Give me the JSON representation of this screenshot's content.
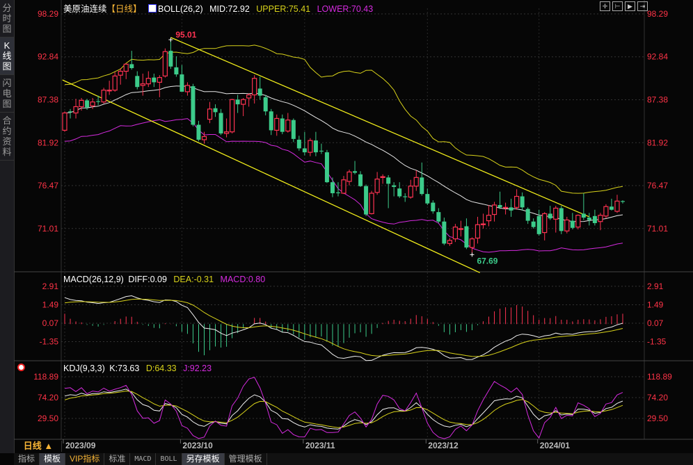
{
  "sidebar": {
    "tabs": [
      {
        "label": "分时图",
        "active": false
      },
      {
        "label": "K线图",
        "active": true
      },
      {
        "label": "闪电图",
        "active": false
      },
      {
        "label": "合约资料",
        "active": false
      }
    ]
  },
  "header": {
    "instrument": "美原油连续",
    "period_tag": "【日线】",
    "boll_label": "BOLL(26,2)",
    "mid": "MID:72.92",
    "upper": "UPPER:75.41",
    "lower": "LOWER:70.43"
  },
  "toolbar": {
    "icons": [
      "crosshair-icon",
      "zoom-in-icon",
      "zoom-out-icon",
      "move-right-icon"
    ]
  },
  "macd_header": {
    "label": "MACD(26,12,9)",
    "diff": "DIFF:0.09",
    "dea": "DEA:-0.31",
    "macd": "MACD:0.80"
  },
  "kdj_header": {
    "label": "KDJ(9,3,3)",
    "k": "K:73.63",
    "d": "D:64.33",
    "j": "J:92.23"
  },
  "bottom": {
    "period": "日线 ▲",
    "tabs": [
      {
        "label": "指标",
        "style": "normal"
      },
      {
        "label": "模板",
        "style": "active"
      },
      {
        "label": "VIP指标",
        "style": "vip"
      },
      {
        "label": "标准",
        "style": "normal"
      },
      {
        "label": "MACD",
        "style": "mono"
      },
      {
        "label": "BOLL",
        "style": "mono"
      },
      {
        "label": "另存模板",
        "style": "active"
      },
      {
        "label": "管理模板",
        "style": "normal"
      }
    ]
  },
  "colors": {
    "up": "#ff3352",
    "down": "#3ccb8a",
    "axis_text": "#ff3347",
    "mid": "#e8e8e8",
    "upper": "#d8d21a",
    "lower": "#d62be0",
    "trend": "#f2ee1a",
    "dea": "#d8d21a",
    "j": "#d62be0"
  },
  "chart_data": [
    {
      "type": "candlestick",
      "title": "美原油连续【日线】",
      "y_ticks": [
        "98.29",
        "92.84",
        "87.38",
        "81.92",
        "76.47",
        "71.01"
      ],
      "ylim": [
        65.0,
        99.0
      ],
      "grid": true,
      "x_labels": [
        {
          "index": 0,
          "label": "2023/09"
        },
        {
          "index": 21,
          "label": "2023/10"
        },
        {
          "index": 43,
          "label": "2023/11"
        },
        {
          "index": 65,
          "label": "2023/12"
        },
        {
          "index": 85,
          "label": "2024/01"
        }
      ],
      "annotations": [
        {
          "index": 19,
          "value": 95.01,
          "label": "95.01",
          "kind": "high"
        },
        {
          "index": 73,
          "value": 67.69,
          "label": "67.69",
          "kind": "low"
        }
      ],
      "trendlines": [
        {
          "from": [
            19,
            95.3
          ],
          "to": [
            94,
            72.5
          ]
        },
        {
          "from": [
            -0.4,
            89.9
          ],
          "to": [
            74.4,
            65.4
          ]
        }
      ],
      "indicator": "BOLL(26,2)",
      "ohlc": [
        [
          83.5,
          85.9,
          83.3,
          85.7
        ],
        [
          85.9,
          86.2,
          85.0,
          85.8
        ],
        [
          85.7,
          87.5,
          85.0,
          86.5
        ],
        [
          86.5,
          87.6,
          86.0,
          87.3
        ],
        [
          87.3,
          87.5,
          86.1,
          86.4
        ],
        [
          86.6,
          87.6,
          86.2,
          87.1
        ],
        [
          87.2,
          87.9,
          86.7,
          87.1
        ],
        [
          87.1,
          88.9,
          86.9,
          88.6
        ],
        [
          88.5,
          89.8,
          88.0,
          88.6
        ],
        [
          88.6,
          90.9,
          88.4,
          90.4
        ],
        [
          90.5,
          91.4,
          89.3,
          91.0
        ],
        [
          91.0,
          92.0,
          90.0,
          91.9
        ],
        [
          91.9,
          93.6,
          91.2,
          91.4
        ],
        [
          90.4,
          91.0,
          88.7,
          89.0
        ],
        [
          89.2,
          90.7,
          87.9,
          89.4
        ],
        [
          89.4,
          91.0,
          89.0,
          90.1
        ],
        [
          90.2,
          90.7,
          89.0,
          89.6
        ],
        [
          89.6,
          90.5,
          87.7,
          90.2
        ],
        [
          90.4,
          93.9,
          90.2,
          93.5
        ],
        [
          93.6,
          95.01,
          91.3,
          91.6
        ],
        [
          91.5,
          92.9,
          90.3,
          90.6
        ],
        [
          90.6,
          91.8,
          88.4,
          88.4
        ],
        [
          88.4,
          89.6,
          87.9,
          89.2
        ],
        [
          89.1,
          89.4,
          84.0,
          84.2
        ],
        [
          84.2,
          84.7,
          82.1,
          82.3
        ],
        [
          82.3,
          83.3,
          81.8,
          82.7
        ],
        [
          84.9,
          87.1,
          84.4,
          86.2
        ],
        [
          86.3,
          86.8,
          85.2,
          85.8
        ],
        [
          85.7,
          86.2,
          82.9,
          83.1
        ],
        [
          83.1,
          85.0,
          82.6,
          83.3
        ],
        [
          83.3,
          87.5,
          83.1,
          87.4
        ],
        [
          87.4,
          88.0,
          85.7,
          86.8
        ],
        [
          86.8,
          87.6,
          85.3,
          87.4
        ],
        [
          87.6,
          88.2,
          86.5,
          88.0
        ],
        [
          88.0,
          90.5,
          86.9,
          90.1
        ],
        [
          88.8,
          90.3,
          87.4,
          87.9
        ],
        [
          87.7,
          88.0,
          85.4,
          85.9
        ],
        [
          85.9,
          86.2,
          82.9,
          83.5
        ],
        [
          83.5,
          85.5,
          82.8,
          85.0
        ],
        [
          85.0,
          85.5,
          83.0,
          83.3
        ],
        [
          83.4,
          85.7,
          83.2,
          84.8
        ],
        [
          84.8,
          85.0,
          82.0,
          82.4
        ],
        [
          82.3,
          82.8,
          80.9,
          81.2
        ],
        [
          81.2,
          83.3,
          80.3,
          80.7
        ],
        [
          80.7,
          82.5,
          80.2,
          82.2
        ],
        [
          82.2,
          83.3,
          80.2,
          80.7
        ],
        [
          80.9,
          81.8,
          80.5,
          80.8
        ],
        [
          80.7,
          81.0,
          76.8,
          76.9
        ],
        [
          76.9,
          77.5,
          75.0,
          75.5
        ],
        [
          75.6,
          76.9,
          75.1,
          75.5
        ],
        [
          75.5,
          77.7,
          75.4,
          77.2
        ],
        [
          77.0,
          78.5,
          76.5,
          78.2
        ],
        [
          78.3,
          79.6,
          77.9,
          78.1
        ],
        [
          77.9,
          78.3,
          76.3,
          76.4
        ],
        [
          76.4,
          76.6,
          72.6,
          72.8
        ],
        [
          72.9,
          75.8,
          72.8,
          75.5
        ],
        [
          75.6,
          78.2,
          75.3,
          77.3
        ],
        [
          77.5,
          77.9,
          76.7,
          77.6
        ],
        [
          77.5,
          77.8,
          73.6,
          76.7
        ],
        [
          76.5,
          76.9,
          75.1,
          76.3
        ],
        [
          76.1,
          76.9,
          74.9,
          75.1
        ],
        [
          75.1,
          75.5,
          74.4,
          75.0
        ],
        [
          75.0,
          77.2,
          74.8,
          76.4
        ],
        [
          76.4,
          78.4,
          75.8,
          77.5
        ],
        [
          77.5,
          79.4,
          75.2,
          75.4
        ],
        [
          75.4,
          76.1,
          74.0,
          74.2
        ],
        [
          74.3,
          74.6,
          72.9,
          73.2
        ],
        [
          73.1,
          73.6,
          71.7,
          71.9
        ],
        [
          71.9,
          72.4,
          68.9,
          69.1
        ],
        [
          69.1,
          69.8,
          68.8,
          69.5
        ],
        [
          69.7,
          71.6,
          69.3,
          71.2
        ],
        [
          70.9,
          72.0,
          70.0,
          71.0
        ],
        [
          71.3,
          72.3,
          68.4,
          68.6
        ],
        [
          68.6,
          69.9,
          67.69,
          69.7
        ],
        [
          69.8,
          72.5,
          69.1,
          71.5
        ],
        [
          71.5,
          72.9,
          71.0,
          71.6
        ],
        [
          72.0,
          74.0,
          71.3,
          72.7
        ],
        [
          72.8,
          74.4,
          71.9,
          74.0
        ],
        [
          74.0,
          75.7,
          73.5,
          73.7
        ],
        [
          73.7,
          74.3,
          72.8,
          73.7
        ],
        [
          73.7,
          74.8,
          72.5,
          73.3
        ],
        [
          73.7,
          76.0,
          73.4,
          75.1
        ],
        [
          75.1,
          75.6,
          73.3,
          73.7
        ],
        [
          73.5,
          73.7,
          71.6,
          72.0
        ],
        [
          71.9,
          72.3,
          71.0,
          71.2
        ],
        [
          72.6,
          73.4,
          70.1,
          70.3
        ],
        [
          70.5,
          73.1,
          69.5,
          72.9
        ],
        [
          72.9,
          73.9,
          72.1,
          72.3
        ],
        [
          72.2,
          73.9,
          70.5,
          73.6
        ],
        [
          73.6,
          73.9,
          70.3,
          70.7
        ],
        [
          70.7,
          72.5,
          70.4,
          72.1
        ],
        [
          72.0,
          73.0,
          70.9,
          71.1
        ],
        [
          71.2,
          72.8,
          70.9,
          72.7
        ],
        [
          72.9,
          75.5,
          72.1,
          72.4
        ],
        [
          72.4,
          73.0,
          71.4,
          72.1
        ],
        [
          72.6,
          73.4,
          71.4,
          71.7
        ],
        [
          71.9,
          73.0,
          70.8,
          72.7
        ],
        [
          72.6,
          74.1,
          72.3,
          73.8
        ],
        [
          73.8,
          74.8,
          73.3,
          73.4
        ],
        [
          73.2,
          75.3,
          73.0,
          74.5
        ],
        [
          74.5,
          74.6,
          74.2,
          74.4
        ]
      ]
    },
    {
      "type": "macd",
      "y_ticks": [
        "2.91",
        "1.49",
        "0.07",
        "-1.35"
      ],
      "ylim": [
        -3.2,
        3.6
      ],
      "last": {
        "diff": 0.09,
        "dea": -0.31,
        "macd": 0.8
      }
    },
    {
      "type": "kdj",
      "y_ticks": [
        "118.89",
        "74.20",
        "29.50"
      ],
      "ylim": [
        -10,
        135
      ],
      "last": {
        "k": 73.63,
        "d": 64.33,
        "j": 92.23
      }
    }
  ]
}
